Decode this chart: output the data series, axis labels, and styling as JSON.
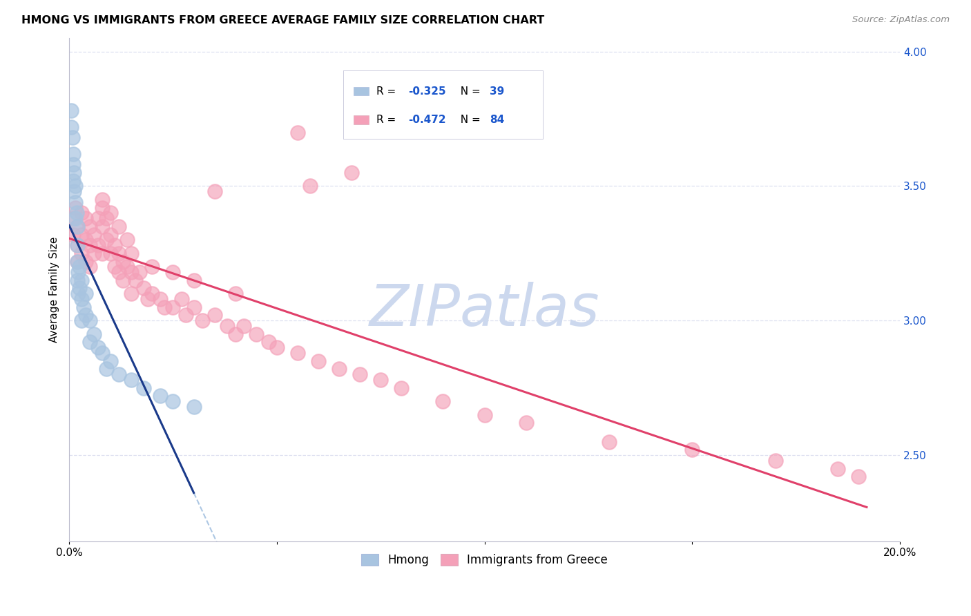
{
  "title": "HMONG VS IMMIGRANTS FROM GREECE AVERAGE FAMILY SIZE CORRELATION CHART",
  "source": "Source: ZipAtlas.com",
  "ylabel": "Average Family Size",
  "watermark": "ZIPatlas",
  "xmin": 0.0,
  "xmax": 0.2,
  "ymin": 2.18,
  "ymax": 4.05,
  "yticks_right": [
    2.5,
    3.0,
    3.5,
    4.0
  ],
  "xtick_positions": [
    0.0,
    0.05,
    0.1,
    0.15,
    0.2
  ],
  "xtick_labels": [
    "0.0%",
    "",
    "",
    "",
    "20.0%"
  ],
  "hmong_x": [
    0.0005,
    0.0005,
    0.0008,
    0.001,
    0.001,
    0.001,
    0.0012,
    0.0012,
    0.0015,
    0.0015,
    0.0015,
    0.0018,
    0.002,
    0.002,
    0.002,
    0.002,
    0.0022,
    0.0022,
    0.0025,
    0.0025,
    0.003,
    0.003,
    0.003,
    0.0035,
    0.004,
    0.004,
    0.005,
    0.005,
    0.006,
    0.007,
    0.008,
    0.009,
    0.01,
    0.012,
    0.015,
    0.018,
    0.022,
    0.025,
    0.03
  ],
  "hmong_y": [
    3.78,
    3.72,
    3.68,
    3.62,
    3.58,
    3.52,
    3.55,
    3.48,
    3.5,
    3.44,
    3.38,
    3.4,
    3.35,
    3.28,
    3.22,
    3.15,
    3.18,
    3.1,
    3.2,
    3.12,
    3.15,
    3.08,
    3.0,
    3.05,
    3.1,
    3.02,
    3.0,
    2.92,
    2.95,
    2.9,
    2.88,
    2.82,
    2.85,
    2.8,
    2.78,
    2.75,
    2.72,
    2.7,
    2.68
  ],
  "greece_x": [
    0.001,
    0.001,
    0.0015,
    0.002,
    0.002,
    0.002,
    0.003,
    0.003,
    0.003,
    0.004,
    0.004,
    0.004,
    0.005,
    0.005,
    0.005,
    0.006,
    0.006,
    0.007,
    0.007,
    0.008,
    0.008,
    0.008,
    0.009,
    0.009,
    0.01,
    0.01,
    0.011,
    0.011,
    0.012,
    0.012,
    0.013,
    0.013,
    0.014,
    0.015,
    0.015,
    0.016,
    0.017,
    0.018,
    0.019,
    0.02,
    0.022,
    0.023,
    0.025,
    0.027,
    0.028,
    0.03,
    0.032,
    0.035,
    0.038,
    0.04,
    0.042,
    0.045,
    0.048,
    0.05,
    0.055,
    0.06,
    0.065,
    0.07,
    0.075,
    0.08,
    0.09,
    0.1,
    0.055,
    0.068,
    0.11,
    0.13,
    0.15,
    0.17,
    0.185,
    0.19,
    0.058,
    0.035,
    0.015,
    0.02,
    0.025,
    0.03,
    0.04,
    0.008,
    0.01,
    0.012,
    0.014
  ],
  "greece_y": [
    3.38,
    3.32,
    3.42,
    3.35,
    3.28,
    3.22,
    3.4,
    3.32,
    3.25,
    3.38,
    3.3,
    3.22,
    3.35,
    3.28,
    3.2,
    3.32,
    3.25,
    3.38,
    3.28,
    3.42,
    3.35,
    3.25,
    3.38,
    3.3,
    3.32,
    3.25,
    3.28,
    3.2,
    3.25,
    3.18,
    3.22,
    3.15,
    3.2,
    3.18,
    3.1,
    3.15,
    3.18,
    3.12,
    3.08,
    3.1,
    3.08,
    3.05,
    3.05,
    3.08,
    3.02,
    3.05,
    3.0,
    3.02,
    2.98,
    2.95,
    2.98,
    2.95,
    2.92,
    2.9,
    2.88,
    2.85,
    2.82,
    2.8,
    2.78,
    2.75,
    2.7,
    2.65,
    3.7,
    3.55,
    2.62,
    2.55,
    2.52,
    2.48,
    2.45,
    2.42,
    3.5,
    3.48,
    3.25,
    3.2,
    3.18,
    3.15,
    3.1,
    3.45,
    3.4,
    3.35,
    3.3
  ],
  "hmong_color": "#a8c4e0",
  "greece_color": "#f4a0b8",
  "hmong_line_color": "#1a3a8a",
  "greece_line_color": "#e0406a",
  "hmong_dash_color": "#8ab0d8",
  "background_color": "#ffffff",
  "grid_color": "#dde0f0",
  "watermark_color": "#ccd8ee",
  "axis_color": "#bbbbcc",
  "legend_box_color": "#ccccdd",
  "r_value_color": "#1a56cc",
  "n_value_color": "#1a56cc"
}
